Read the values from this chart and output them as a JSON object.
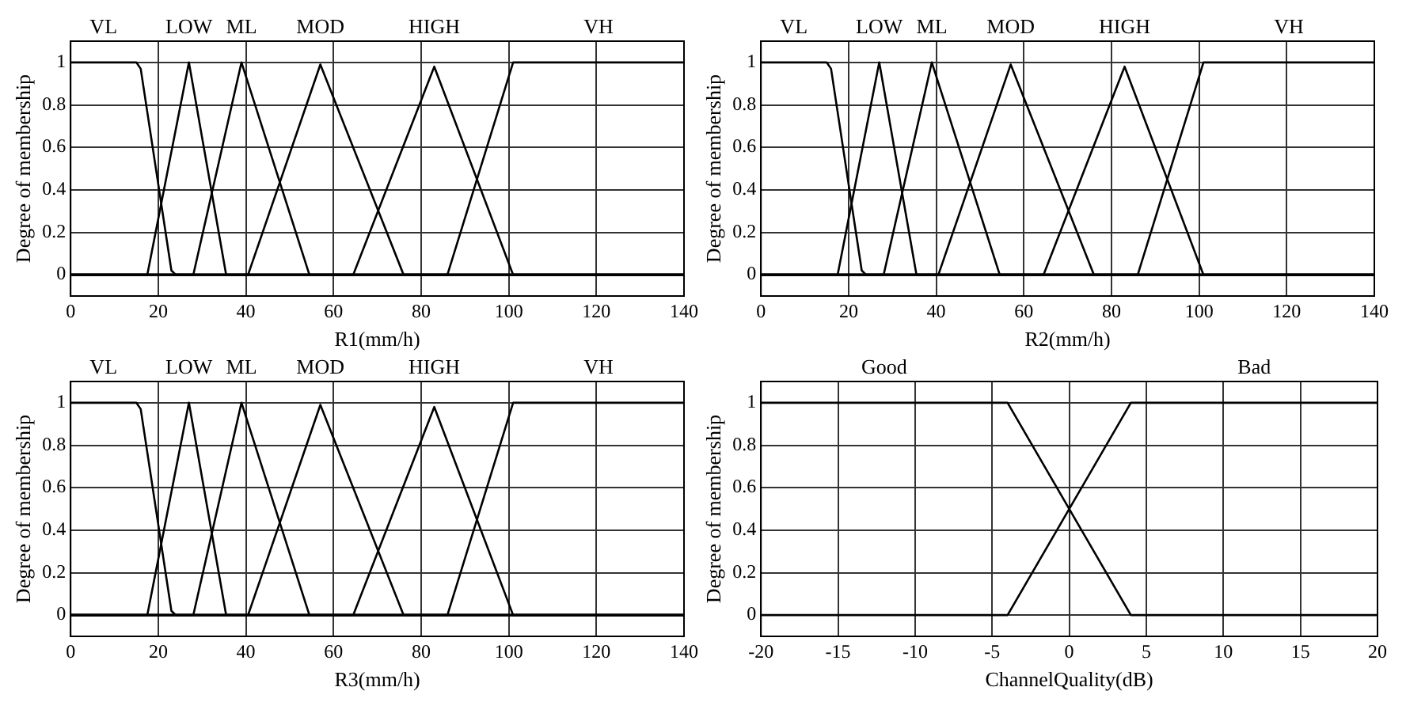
{
  "chart_data": [
    {
      "type": "line",
      "xlabel": "R1(mm/h)",
      "ylabel": "Degree of membership",
      "xlim": [
        0,
        140
      ],
      "xticks": [
        0,
        20,
        40,
        60,
        80,
        100,
        120,
        140
      ],
      "ylim": [
        -0.1,
        1.1
      ],
      "yticks": [
        0,
        0.2,
        0.4,
        0.6,
        0.8,
        1
      ],
      "grid": true,
      "legend": false,
      "marker": "none",
      "line_style": "solid",
      "series": [
        {
          "name": "VL",
          "color": "#000000",
          "x": [
            0,
            15,
            16,
            23,
            24,
            140
          ],
          "values": [
            1,
            1,
            0.97,
            0.02,
            0,
            0
          ]
        },
        {
          "name": "LOW",
          "color": "#000000",
          "x": [
            0,
            17.5,
            27,
            35.5,
            140
          ],
          "values": [
            0,
            0,
            1,
            0,
            0
          ]
        },
        {
          "name": "ML",
          "color": "#000000",
          "x": [
            0,
            28,
            39,
            54.5,
            140
          ],
          "values": [
            0,
            0,
            1,
            0,
            0
          ]
        },
        {
          "name": "MOD",
          "color": "#000000",
          "x": [
            0,
            40.5,
            57,
            76,
            140
          ],
          "values": [
            0,
            0,
            0.99,
            0,
            0
          ]
        },
        {
          "name": "HIGH",
          "color": "#000000",
          "x": [
            0,
            64.5,
            83,
            101,
            140
          ],
          "values": [
            0,
            0,
            0.98,
            0,
            0
          ]
        },
        {
          "name": "VH",
          "color": "#000000",
          "x": [
            0,
            86,
            101,
            140
          ],
          "values": [
            0,
            0,
            1,
            1
          ]
        }
      ]
    },
    {
      "type": "line",
      "xlabel": "R2(mm/h)",
      "ylabel": "Degree of membership",
      "xlim": [
        0,
        140
      ],
      "xticks": [
        0,
        20,
        40,
        60,
        80,
        100,
        120,
        140
      ],
      "ylim": [
        -0.1,
        1.1
      ],
      "yticks": [
        0,
        0.2,
        0.4,
        0.6,
        0.8,
        1
      ],
      "grid": true,
      "legend": false,
      "marker": "none",
      "line_style": "solid",
      "series": [
        {
          "name": "VL",
          "color": "#000000",
          "x": [
            0,
            15,
            16,
            23,
            24,
            140
          ],
          "values": [
            1,
            1,
            0.97,
            0.02,
            0,
            0
          ]
        },
        {
          "name": "LOW",
          "color": "#000000",
          "x": [
            0,
            17.5,
            27,
            35.5,
            140
          ],
          "values": [
            0,
            0,
            1,
            0,
            0
          ]
        },
        {
          "name": "ML",
          "color": "#000000",
          "x": [
            0,
            28,
            39,
            54.5,
            140
          ],
          "values": [
            0,
            0,
            1,
            0,
            0
          ]
        },
        {
          "name": "MOD",
          "color": "#000000",
          "x": [
            0,
            40.5,
            57,
            76,
            140
          ],
          "values": [
            0,
            0,
            0.99,
            0,
            0
          ]
        },
        {
          "name": "HIGH",
          "color": "#000000",
          "x": [
            0,
            64.5,
            83,
            101,
            140
          ],
          "values": [
            0,
            0,
            0.98,
            0,
            0
          ]
        },
        {
          "name": "VH",
          "color": "#000000",
          "x": [
            0,
            86,
            101,
            140
          ],
          "values": [
            0,
            0,
            1,
            1
          ]
        }
      ]
    },
    {
      "type": "line",
      "xlabel": "R3(mm/h)",
      "ylabel": "Degree of membership",
      "xlim": [
        0,
        140
      ],
      "xticks": [
        0,
        20,
        40,
        60,
        80,
        100,
        120,
        140
      ],
      "ylim": [
        -0.1,
        1.1
      ],
      "yticks": [
        0,
        0.2,
        0.4,
        0.6,
        0.8,
        1
      ],
      "grid": true,
      "legend": false,
      "marker": "none",
      "line_style": "solid",
      "series": [
        {
          "name": "VL",
          "color": "#000000",
          "x": [
            0,
            15,
            16,
            23,
            24,
            140
          ],
          "values": [
            1,
            1,
            0.97,
            0.02,
            0,
            0
          ]
        },
        {
          "name": "LOW",
          "color": "#000000",
          "x": [
            0,
            17.5,
            27,
            35.5,
            140
          ],
          "values": [
            0,
            0,
            1,
            0,
            0
          ]
        },
        {
          "name": "ML",
          "color": "#000000",
          "x": [
            0,
            28,
            39,
            54.5,
            140
          ],
          "values": [
            0,
            0,
            1,
            0,
            0
          ]
        },
        {
          "name": "MOD",
          "color": "#000000",
          "x": [
            0,
            40.5,
            57,
            76,
            140
          ],
          "values": [
            0,
            0,
            0.99,
            0,
            0
          ]
        },
        {
          "name": "HIGH",
          "color": "#000000",
          "x": [
            0,
            64.5,
            83,
            101,
            140
          ],
          "values": [
            0,
            0,
            0.98,
            0,
            0
          ]
        },
        {
          "name": "VH",
          "color": "#000000",
          "x": [
            0,
            86,
            101,
            140
          ],
          "values": [
            0,
            0,
            1,
            1
          ]
        }
      ]
    },
    {
      "type": "line",
      "xlabel": "ChannelQuality(dB)",
      "ylabel": "Degree of membership",
      "xlim": [
        -20,
        20
      ],
      "xticks": [
        -20,
        -15,
        -10,
        -5,
        0,
        5,
        10,
        15,
        20
      ],
      "ylim": [
        -0.1,
        1.1
      ],
      "yticks": [
        0,
        0.2,
        0.4,
        0.6,
        0.8,
        1
      ],
      "grid": true,
      "legend": false,
      "marker": "none",
      "line_style": "solid",
      "series": [
        {
          "name": "Good",
          "color": "#000000",
          "x": [
            -20,
            -4,
            4,
            20
          ],
          "values": [
            1,
            1,
            0,
            0
          ]
        },
        {
          "name": "Bad",
          "color": "#000000",
          "x": [
            -20,
            -4,
            4,
            20
          ],
          "values": [
            0,
            0,
            1,
            1
          ]
        }
      ]
    }
  ]
}
